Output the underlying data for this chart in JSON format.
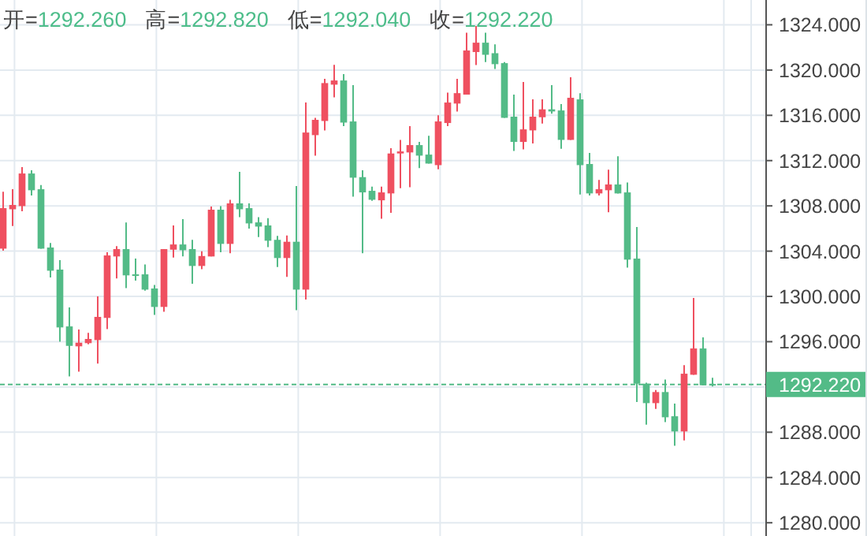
{
  "chart_data": {
    "type": "candlestick",
    "annotations": [
      "开=1292.260",
      "高=1292.820",
      "低=1292.040",
      "收=1292.220"
    ],
    "categories": [
      null,
      null,
      null,
      null,
      null,
      null,
      null,
      null,
      null,
      null,
      null,
      null,
      null,
      null,
      null,
      null,
      null,
      null,
      null,
      null,
      null,
      null,
      null,
      null,
      null,
      null,
      null,
      null,
      null,
      null,
      null,
      null,
      null,
      null,
      null,
      null,
      null,
      null,
      null,
      null,
      null,
      null,
      null,
      null,
      null,
      null,
      null,
      null,
      null,
      null,
      null,
      null,
      null,
      null,
      null,
      null,
      null,
      null,
      null,
      null,
      null,
      null,
      null,
      null,
      null,
      null,
      null,
      null,
      null,
      null,
      null,
      null,
      null,
      null,
      null,
      null
    ],
    "ohlc": [
      [
        1304.22,
        1309.24,
        1304.04,
        1307.8
      ],
      [
        1307.7,
        1309.47,
        1306.22,
        1308.08
      ],
      [
        1307.98,
        1311.42,
        1307.52,
        1310.86
      ],
      [
        1310.86,
        1311.14,
        1308.91,
        1309.38
      ],
      [
        1309.47,
        1309.84,
        1304.22,
        1304.22
      ],
      [
        1304.32,
        1304.73,
        1301.67,
        1302.27
      ],
      [
        1302.37,
        1303.2,
        1296.0,
        1297.26
      ],
      [
        1297.35,
        1299.02,
        1292.94,
        1295.63
      ],
      [
        1295.59,
        1297.07,
        1293.36,
        1295.91
      ],
      [
        1295.87,
        1296.79,
        1295.77,
        1296.24
      ],
      [
        1296.14,
        1300.0,
        1294.06,
        1298.19
      ],
      [
        1298.1,
        1303.9,
        1297.12,
        1303.62
      ],
      [
        1303.53,
        1304.45,
        1301.58,
        1304.18
      ],
      [
        1304.18,
        1306.54,
        1300.74,
        1301.86
      ],
      [
        1301.95,
        1303.34,
        1301.39,
        1301.86
      ],
      [
        1301.95,
        1302.83,
        1300.51,
        1300.6
      ],
      [
        1300.7,
        1301.02,
        1298.37,
        1299.07
      ],
      [
        1299.07,
        1304.18,
        1298.65,
        1304.18
      ],
      [
        1304.13,
        1306.27,
        1303.43,
        1304.59
      ],
      [
        1304.59,
        1306.82,
        1303.53,
        1304.08
      ],
      [
        1304.18,
        1305.0,
        1301.11,
        1302.69
      ],
      [
        1302.69,
        1303.99,
        1302.41,
        1303.57
      ],
      [
        1303.53,
        1307.94,
        1303.53,
        1307.66
      ],
      [
        1307.66,
        1307.98,
        1303.9,
        1304.64
      ],
      [
        1304.64,
        1308.54,
        1303.81,
        1308.22
      ],
      [
        1308.22,
        1311.0,
        1307.01,
        1307.7
      ],
      [
        1307.8,
        1308.22,
        1305.99,
        1306.45
      ],
      [
        1306.54,
        1307.01,
        1305.24,
        1306.17
      ],
      [
        1306.27,
        1306.92,
        1304.36,
        1304.92
      ],
      [
        1305.0,
        1305.34,
        1302.6,
        1303.39
      ],
      [
        1303.39,
        1305.38,
        1301.72,
        1304.83
      ],
      [
        1304.83,
        1309.75,
        1298.79,
        1300.6
      ],
      [
        1300.6,
        1317.13,
        1299.72,
        1314.48
      ],
      [
        1314.25,
        1315.78,
        1312.44,
        1315.6
      ],
      [
        1315.5,
        1319.22,
        1314.67,
        1318.85
      ],
      [
        1318.71,
        1320.47,
        1317.59,
        1319.08
      ],
      [
        1319.08,
        1319.64,
        1315.04,
        1315.36
      ],
      [
        1315.46,
        1318.66,
        1308.82,
        1310.49
      ],
      [
        1310.54,
        1311.14,
        1303.81,
        1309.19
      ],
      [
        1309.33,
        1309.7,
        1308.45,
        1308.54
      ],
      [
        1308.49,
        1309.7,
        1306.87,
        1309.19
      ],
      [
        1309.1,
        1313.09,
        1307.38,
        1312.63
      ],
      [
        1312.63,
        1313.83,
        1309.56,
        1312.81
      ],
      [
        1312.72,
        1315.04,
        1309.65,
        1313.37
      ],
      [
        1313.37,
        1313.65,
        1311.33,
        1312.44
      ],
      [
        1312.53,
        1314.2,
        1311.74,
        1311.74
      ],
      [
        1311.6,
        1316.01,
        1311.23,
        1315.46
      ],
      [
        1315.32,
        1318.01,
        1315.04,
        1317.13
      ],
      [
        1317.04,
        1319.22,
        1316.34,
        1317.96
      ],
      [
        1317.83,
        1323.3,
        1317.83,
        1321.73
      ],
      [
        1321.59,
        1323.9,
        1320.45,
        1322.42
      ],
      [
        1322.42,
        1323.3,
        1320.7,
        1321.35
      ],
      [
        1321.49,
        1322.28,
        1320.1,
        1320.52
      ],
      [
        1320.61,
        1320.7,
        1315.78,
        1315.78
      ],
      [
        1315.88,
        1317.83,
        1312.86,
        1313.65
      ],
      [
        1313.65,
        1318.94,
        1313.0,
        1314.76
      ],
      [
        1314.67,
        1317.41,
        1313.51,
        1315.88
      ],
      [
        1315.83,
        1317.41,
        1315.27,
        1316.53
      ],
      [
        1316.53,
        1318.66,
        1316.15,
        1316.34
      ],
      [
        1316.43,
        1316.99,
        1313.04,
        1313.83
      ],
      [
        1313.83,
        1319.36,
        1313.83,
        1317.55
      ],
      [
        1317.41,
        1317.96,
        1309.0,
        1311.6
      ],
      [
        1311.7,
        1312.67,
        1308.91,
        1309.1
      ],
      [
        1309.1,
        1310.3,
        1308.91,
        1309.47
      ],
      [
        1309.38,
        1311.19,
        1307.43,
        1309.89
      ],
      [
        1309.89,
        1312.39,
        1309.1,
        1309.1
      ],
      [
        1309.19,
        1310.07,
        1302.55,
        1303.25
      ],
      [
        1303.34,
        1306.13,
        1290.67,
        1292.29
      ],
      [
        1292.29,
        1292.38,
        1288.67,
        1290.57
      ],
      [
        1290.57,
        1291.73,
        1290.06,
        1291.55
      ],
      [
        1291.55,
        1292.66,
        1288.9,
        1289.32
      ],
      [
        1289.41,
        1290.53,
        1286.81,
        1288.07
      ],
      [
        1288.07,
        1293.92,
        1287.28,
        1293.17
      ],
      [
        1293.08,
        1299.86,
        1293.08,
        1295.4
      ],
      [
        1295.4,
        1296.38,
        1292.15,
        1292.15
      ],
      [
        1292.26,
        1292.82,
        1292.04,
        1292.22
      ]
    ],
    "colors": [
      "#ef5060",
      "#ef5060",
      "#ef5060",
      "#53bb87",
      "#53bb87",
      "#53bb87",
      "#53bb87",
      "#53bb87",
      "#ef5060",
      "#ef5060",
      "#ef5060",
      "#ef5060",
      "#ef5060",
      "#53bb87",
      "#53bb87",
      "#53bb87",
      "#53bb87",
      "#ef5060",
      "#ef5060",
      "#53bb87",
      "#53bb87",
      "#ef5060",
      "#ef5060",
      "#53bb87",
      "#ef5060",
      "#53bb87",
      "#53bb87",
      "#53bb87",
      "#53bb87",
      "#53bb87",
      "#ef5060",
      "#53bb87",
      "#ef5060",
      "#ef5060",
      "#ef5060",
      "#ef5060",
      "#53bb87",
      "#53bb87",
      "#53bb87",
      "#53bb87",
      "#ef5060",
      "#ef5060",
      "#ef5060",
      "#ef5060",
      "#53bb87",
      "#53bb87",
      "#ef5060",
      "#ef5060",
      "#ef5060",
      "#ef5060",
      "#ef5060",
      "#53bb87",
      "#53bb87",
      "#53bb87",
      "#53bb87",
      "#ef5060",
      "#ef5060",
      "#ef5060",
      "#53bb87",
      "#53bb87",
      "#ef5060",
      "#53bb87",
      "#53bb87",
      "#ef5060",
      "#ef5060",
      "#53bb87",
      "#53bb87",
      "#53bb87",
      "#53bb87",
      "#ef5060",
      "#53bb87",
      "#53bb87",
      "#ef5060",
      "#ef5060",
      "#53bb87",
      "#53bb87"
    ],
    "ylim": [
      1278.83,
      1326.19
    ],
    "yticks": [
      {
        "value": 1280,
        "label": "1280.000"
      },
      {
        "value": 1284,
        "label": "1284.000"
      },
      {
        "value": 1288,
        "label": "1288.000"
      },
      {
        "value": 1292,
        "label": null
      },
      {
        "value": 1296,
        "label": "1296.000"
      },
      {
        "value": 1300,
        "label": "1300.000"
      },
      {
        "value": 1304,
        "label": "1304.000"
      },
      {
        "value": 1308,
        "label": "1308.000"
      },
      {
        "value": 1312,
        "label": "1312.000"
      },
      {
        "value": 1316,
        "label": "1316.000"
      },
      {
        "value": 1320,
        "label": "1320.000"
      },
      {
        "value": 1324,
        "label": "1324.000"
      }
    ],
    "ref_lines": [
      {
        "axis": "y",
        "value": 1292.22,
        "label": "1292.220",
        "color": "#53bb87",
        "line_style": "dashed"
      }
    ],
    "grid": true,
    "tick_labels": "y"
  }
}
